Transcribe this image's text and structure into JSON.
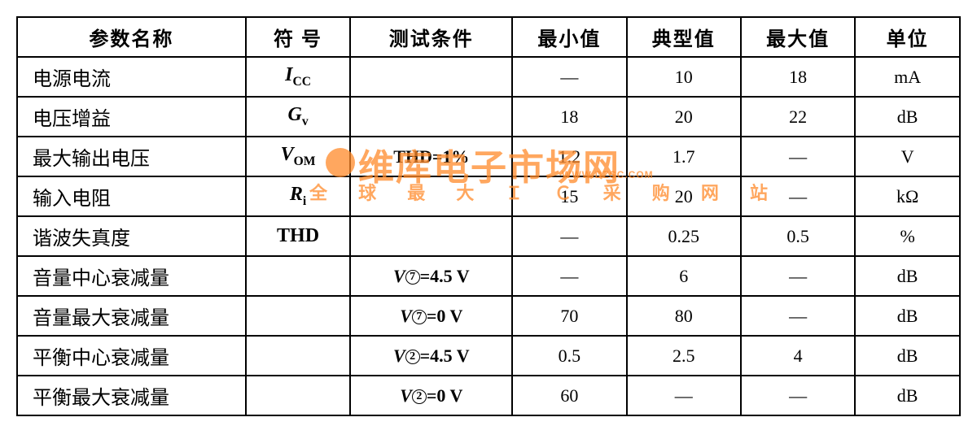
{
  "table": {
    "type": "table",
    "border_color": "#000000",
    "background_color": "#ffffff",
    "font_family": "SimSun, serif",
    "header_fontsize": 24,
    "cell_fontsize": 22,
    "col_widths_pct": [
      24,
      11,
      15,
      12,
      12,
      12,
      11
    ],
    "columns": [
      "参数名称",
      "符 号",
      "测试条件",
      "最小值",
      "典型值",
      "最大值",
      "单位"
    ],
    "rows": [
      {
        "param": "电源电流",
        "symbol": "I",
        "sub": "CC",
        "cond": "",
        "min": "—",
        "typ": "10",
        "max": "18",
        "unit": "mA"
      },
      {
        "param": "电压增益",
        "symbol": "G",
        "sub": "v",
        "cond": "",
        "min": "18",
        "typ": "20",
        "max": "22",
        "unit": "dB"
      },
      {
        "param": "最大输出电压",
        "symbol": "V",
        "sub": "OM",
        "cond": "THD=1%",
        "min": "1.2",
        "typ": "1.7",
        "max": "—",
        "unit": "V"
      },
      {
        "param": "输入电阻",
        "symbol": "R",
        "sub": "i",
        "cond": "",
        "min": "15",
        "typ": "20",
        "max": "—",
        "unit": "kΩ"
      },
      {
        "param": "谐波失真度",
        "symbol": "THD",
        "sub": "",
        "cond": "",
        "min": "—",
        "typ": "0.25",
        "max": "0.5",
        "unit": "%"
      },
      {
        "param": "音量中心衰减量",
        "symbol": "",
        "sub": "",
        "cond": "V⑦=4.5 V",
        "circ": "7",
        "cval": "4.5 V",
        "min": "—",
        "typ": "6",
        "max": "—",
        "unit": "dB"
      },
      {
        "param": "音量最大衰减量",
        "symbol": "",
        "sub": "",
        "cond": "V⑦=0 V",
        "circ": "7",
        "cval": "0 V",
        "min": "70",
        "typ": "80",
        "max": "—",
        "unit": "dB"
      },
      {
        "param": "平衡中心衰减量",
        "symbol": "",
        "sub": "",
        "cond": "V②=4.5 V",
        "circ": "2",
        "cval": "4.5 V",
        "min": "0.5",
        "typ": "2.5",
        "max": "4",
        "unit": "dB"
      },
      {
        "param": "平衡最大衰减量",
        "symbol": "",
        "sub": "",
        "cond": "V②=0 V",
        "circ": "2",
        "cval": "0 V",
        "min": "60",
        "typ": "—",
        "max": "—",
        "unit": "dB"
      }
    ]
  },
  "watermark": {
    "color": "#ff8a2a",
    "main": "维库电子市场网",
    "sub": "全 球 最 大 Ｉ Ｃ 采 购 网 站",
    "site": "WWW.DZSC.COM"
  }
}
